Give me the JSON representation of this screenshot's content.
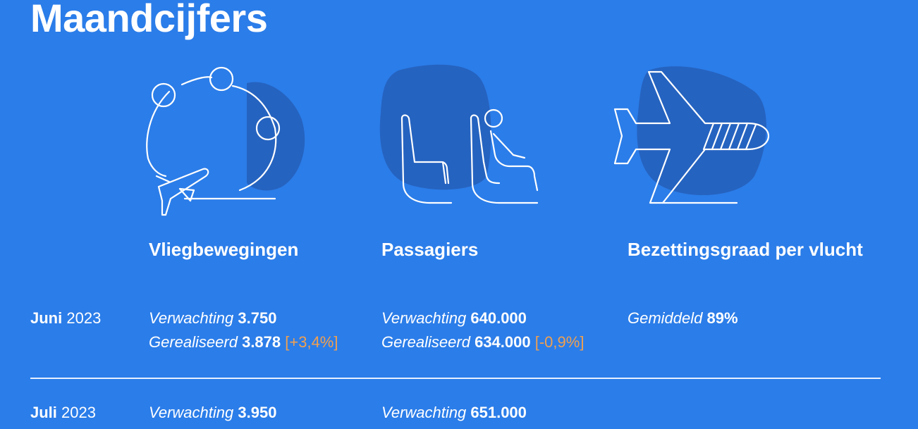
{
  "title": "Maandcijfers",
  "colors": {
    "background": "#2b7de9",
    "icon_shape": "#2563c0",
    "text": "#ffffff",
    "delta": "#f0a050"
  },
  "columns": [
    {
      "title": "Vliegbewegingen",
      "icon": "globe-route-plane-icon"
    },
    {
      "title": "Passagiers",
      "icon": "passenger-seats-icon"
    },
    {
      "title": "Bezettingsgraad per vlucht",
      "icon": "airplane-icon"
    }
  ],
  "rows": [
    {
      "month": "Juni",
      "year": "2023",
      "vliegbewegingen": {
        "expected_label": "Verwachting",
        "expected_value": "3.750",
        "realized_label": "Gerealiseerd",
        "realized_value": "3.878",
        "delta": "[+3,4%]"
      },
      "passagiers": {
        "expected_label": "Verwachting",
        "expected_value": "640.000",
        "realized_label": "Gerealiseerd",
        "realized_value": "634.000",
        "delta": "[-0,9%]"
      },
      "bezettingsgraad": {
        "label": "Gemiddeld",
        "value": "89%"
      }
    },
    {
      "month": "Juli",
      "year": "2023",
      "vliegbewegingen": {
        "expected_label": "Verwachting",
        "expected_value": "3.950"
      },
      "passagiers": {
        "expected_label": "Verwachting",
        "expected_value": "651.000"
      }
    }
  ]
}
